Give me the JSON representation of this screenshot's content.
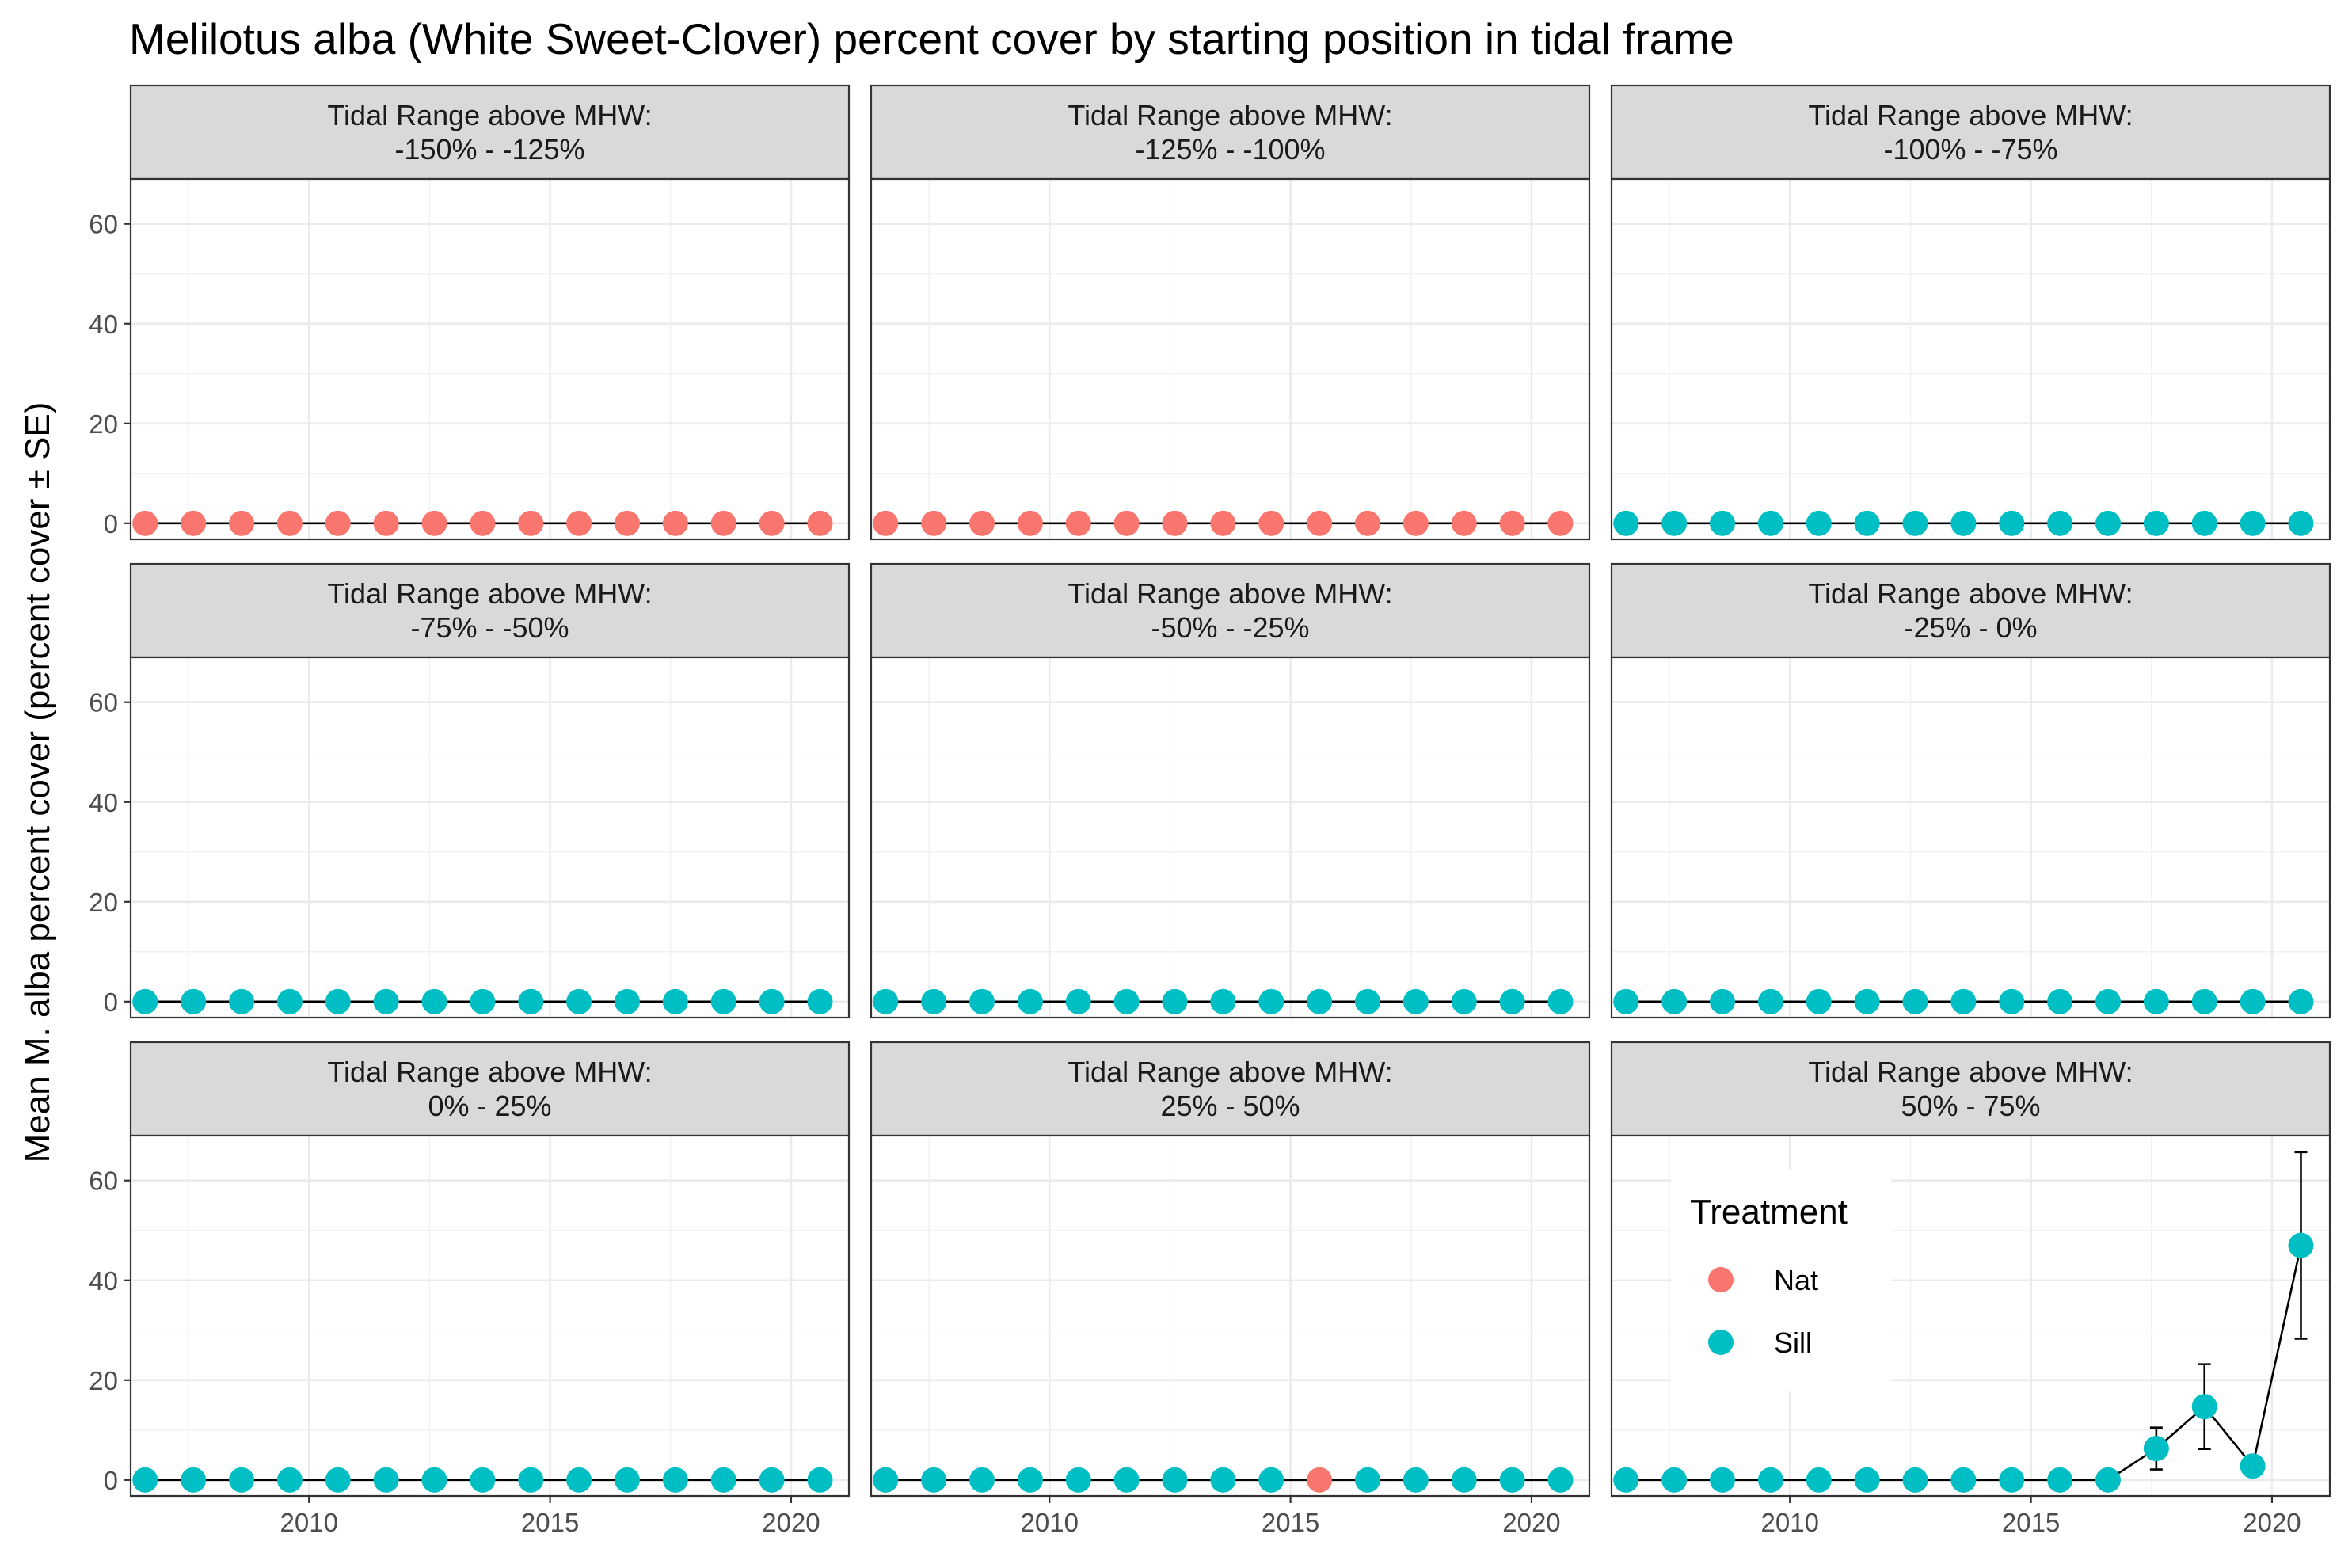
{
  "chart_data": {
    "type": "line",
    "title": "Melilotus alba (White Sweet-Clover) percent cover by starting position in tidal frame",
    "ylabel": "Mean M. alba percent cover (percent cover ± SE)",
    "xlabel": "",
    "xlim": [
      2006.3,
      2021.2
    ],
    "ylim": [
      -3.2,
      69
    ],
    "x_ticks": [
      2010,
      2015,
      2020
    ],
    "y_ticks": [
      0,
      20,
      40,
      60
    ],
    "grid": true,
    "legend": {
      "title": "Treatment",
      "position": "inside bottom-right panel, top-left",
      "entries": [
        {
          "name": "Nat",
          "color": "#F8766D"
        },
        {
          "name": "Sill",
          "color": "#00BFC4"
        }
      ]
    },
    "strip_header": "Tidal Range above MHW:",
    "panels": [
      {
        "range": "-150%  -  -125%",
        "points": [
          {
            "x": 2006.6,
            "y": 0,
            "t": "Nat"
          },
          {
            "x": 2007.6,
            "y": 0,
            "t": "Nat"
          },
          {
            "x": 2008.6,
            "y": 0,
            "t": "Nat"
          },
          {
            "x": 2009.6,
            "y": 0,
            "t": "Nat"
          },
          {
            "x": 2010.6,
            "y": 0,
            "t": "Nat"
          },
          {
            "x": 2011.6,
            "y": 0,
            "t": "Nat"
          },
          {
            "x": 2012.6,
            "y": 0,
            "t": "Nat"
          },
          {
            "x": 2013.6,
            "y": 0,
            "t": "Nat"
          },
          {
            "x": 2014.6,
            "y": 0,
            "t": "Nat"
          },
          {
            "x": 2015.6,
            "y": 0,
            "t": "Nat"
          },
          {
            "x": 2016.6,
            "y": 0,
            "t": "Nat"
          },
          {
            "x": 2017.6,
            "y": 0,
            "t": "Nat"
          },
          {
            "x": 2018.6,
            "y": 0,
            "t": "Nat"
          },
          {
            "x": 2019.6,
            "y": 0,
            "t": "Nat"
          },
          {
            "x": 2020.6,
            "y": 0,
            "t": "Nat"
          }
        ]
      },
      {
        "range": "-125%  -  -100%",
        "points": [
          {
            "x": 2006.6,
            "y": 0,
            "t": "Nat"
          },
          {
            "x": 2007.6,
            "y": 0,
            "t": "Nat"
          },
          {
            "x": 2008.6,
            "y": 0,
            "t": "Nat"
          },
          {
            "x": 2009.6,
            "y": 0,
            "t": "Nat"
          },
          {
            "x": 2010.6,
            "y": 0,
            "t": "Nat"
          },
          {
            "x": 2011.6,
            "y": 0,
            "t": "Nat"
          },
          {
            "x": 2012.6,
            "y": 0,
            "t": "Nat"
          },
          {
            "x": 2013.6,
            "y": 0,
            "t": "Nat"
          },
          {
            "x": 2014.6,
            "y": 0,
            "t": "Nat"
          },
          {
            "x": 2015.6,
            "y": 0,
            "t": "Nat"
          },
          {
            "x": 2016.6,
            "y": 0,
            "t": "Nat"
          },
          {
            "x": 2017.6,
            "y": 0,
            "t": "Nat"
          },
          {
            "x": 2018.6,
            "y": 0,
            "t": "Nat"
          },
          {
            "x": 2019.6,
            "y": 0,
            "t": "Nat"
          },
          {
            "x": 2020.6,
            "y": 0,
            "t": "Nat"
          }
        ]
      },
      {
        "range": "-100%  -  -75%",
        "points": [
          {
            "x": 2006.6,
            "y": 0,
            "t": "Sill"
          },
          {
            "x": 2007.6,
            "y": 0,
            "t": "Sill"
          },
          {
            "x": 2008.6,
            "y": 0,
            "t": "Sill"
          },
          {
            "x": 2009.6,
            "y": 0,
            "t": "Sill"
          },
          {
            "x": 2010.6,
            "y": 0,
            "t": "Sill"
          },
          {
            "x": 2011.6,
            "y": 0,
            "t": "Sill"
          },
          {
            "x": 2012.6,
            "y": 0,
            "t": "Sill"
          },
          {
            "x": 2013.6,
            "y": 0,
            "t": "Sill"
          },
          {
            "x": 2014.6,
            "y": 0,
            "t": "Sill"
          },
          {
            "x": 2015.6,
            "y": 0,
            "t": "Sill"
          },
          {
            "x": 2016.6,
            "y": 0,
            "t": "Sill"
          },
          {
            "x": 2017.6,
            "y": 0,
            "t": "Sill"
          },
          {
            "x": 2018.6,
            "y": 0,
            "t": "Sill"
          },
          {
            "x": 2019.6,
            "y": 0,
            "t": "Sill"
          },
          {
            "x": 2020.6,
            "y": 0,
            "t": "Sill"
          }
        ]
      },
      {
        "range": "-75%  -  -50%",
        "points": [
          {
            "x": 2006.6,
            "y": 0,
            "t": "Sill"
          },
          {
            "x": 2007.6,
            "y": 0,
            "t": "Sill"
          },
          {
            "x": 2008.6,
            "y": 0,
            "t": "Sill"
          },
          {
            "x": 2009.6,
            "y": 0,
            "t": "Sill"
          },
          {
            "x": 2010.6,
            "y": 0,
            "t": "Sill"
          },
          {
            "x": 2011.6,
            "y": 0,
            "t": "Sill"
          },
          {
            "x": 2012.6,
            "y": 0,
            "t": "Sill"
          },
          {
            "x": 2013.6,
            "y": 0,
            "t": "Sill"
          },
          {
            "x": 2014.6,
            "y": 0,
            "t": "Sill"
          },
          {
            "x": 2015.6,
            "y": 0,
            "t": "Sill"
          },
          {
            "x": 2016.6,
            "y": 0,
            "t": "Sill"
          },
          {
            "x": 2017.6,
            "y": 0,
            "t": "Sill"
          },
          {
            "x": 2018.6,
            "y": 0,
            "t": "Sill"
          },
          {
            "x": 2019.6,
            "y": 0,
            "t": "Sill"
          },
          {
            "x": 2020.6,
            "y": 0,
            "t": "Sill"
          }
        ]
      },
      {
        "range": "-50%  -  -25%",
        "points": [
          {
            "x": 2006.6,
            "y": 0,
            "t": "Sill"
          },
          {
            "x": 2007.6,
            "y": 0,
            "t": "Sill"
          },
          {
            "x": 2008.6,
            "y": 0,
            "t": "Sill"
          },
          {
            "x": 2009.6,
            "y": 0,
            "t": "Sill"
          },
          {
            "x": 2010.6,
            "y": 0,
            "t": "Sill"
          },
          {
            "x": 2011.6,
            "y": 0,
            "t": "Sill"
          },
          {
            "x": 2012.6,
            "y": 0,
            "t": "Sill"
          },
          {
            "x": 2013.6,
            "y": 0,
            "t": "Sill"
          },
          {
            "x": 2014.6,
            "y": 0,
            "t": "Sill"
          },
          {
            "x": 2015.6,
            "y": 0,
            "t": "Sill"
          },
          {
            "x": 2016.6,
            "y": 0,
            "t": "Sill"
          },
          {
            "x": 2017.6,
            "y": 0,
            "t": "Sill"
          },
          {
            "x": 2018.6,
            "y": 0,
            "t": "Sill"
          },
          {
            "x": 2019.6,
            "y": 0,
            "t": "Sill"
          },
          {
            "x": 2020.6,
            "y": 0,
            "t": "Sill"
          }
        ]
      },
      {
        "range": "-25%  -  0%",
        "points": [
          {
            "x": 2006.6,
            "y": 0,
            "t": "Sill"
          },
          {
            "x": 2007.6,
            "y": 0,
            "t": "Sill"
          },
          {
            "x": 2008.6,
            "y": 0,
            "t": "Sill"
          },
          {
            "x": 2009.6,
            "y": 0,
            "t": "Sill"
          },
          {
            "x": 2010.6,
            "y": 0,
            "t": "Sill"
          },
          {
            "x": 2011.6,
            "y": 0,
            "t": "Sill"
          },
          {
            "x": 2012.6,
            "y": 0,
            "t": "Sill"
          },
          {
            "x": 2013.6,
            "y": 0,
            "t": "Sill"
          },
          {
            "x": 2014.6,
            "y": 0,
            "t": "Sill"
          },
          {
            "x": 2015.6,
            "y": 0,
            "t": "Sill"
          },
          {
            "x": 2016.6,
            "y": 0,
            "t": "Sill"
          },
          {
            "x": 2017.6,
            "y": 0,
            "t": "Sill"
          },
          {
            "x": 2018.6,
            "y": 0,
            "t": "Sill"
          },
          {
            "x": 2019.6,
            "y": 0,
            "t": "Sill"
          },
          {
            "x": 2020.6,
            "y": 0,
            "t": "Sill"
          }
        ]
      },
      {
        "range": "0%  -  25%",
        "points": [
          {
            "x": 2006.6,
            "y": 0,
            "t": "Sill"
          },
          {
            "x": 2007.6,
            "y": 0,
            "t": "Sill"
          },
          {
            "x": 2008.6,
            "y": 0,
            "t": "Sill"
          },
          {
            "x": 2009.6,
            "y": 0,
            "t": "Sill"
          },
          {
            "x": 2010.6,
            "y": 0,
            "t": "Sill"
          },
          {
            "x": 2011.6,
            "y": 0,
            "t": "Sill"
          },
          {
            "x": 2012.6,
            "y": 0,
            "t": "Sill"
          },
          {
            "x": 2013.6,
            "y": 0,
            "t": "Sill"
          },
          {
            "x": 2014.6,
            "y": 0,
            "t": "Sill"
          },
          {
            "x": 2015.6,
            "y": 0,
            "t": "Sill"
          },
          {
            "x": 2016.6,
            "y": 0,
            "t": "Sill"
          },
          {
            "x": 2017.6,
            "y": 0,
            "t": "Sill"
          },
          {
            "x": 2018.6,
            "y": 0,
            "t": "Sill"
          },
          {
            "x": 2019.6,
            "y": 0,
            "t": "Sill"
          },
          {
            "x": 2020.6,
            "y": 0,
            "t": "Sill"
          }
        ]
      },
      {
        "range": "25%  -  50%",
        "points": [
          {
            "x": 2006.6,
            "y": 0,
            "t": "Nat"
          },
          {
            "x": 2006.6,
            "y": 0,
            "t": "Sill"
          },
          {
            "x": 2007.6,
            "y": 0,
            "t": "Sill"
          },
          {
            "x": 2008.6,
            "y": 0,
            "t": "Sill"
          },
          {
            "x": 2009.6,
            "y": 0,
            "t": "Sill"
          },
          {
            "x": 2010.6,
            "y": 0,
            "t": "Sill"
          },
          {
            "x": 2011.6,
            "y": 0,
            "t": "Sill"
          },
          {
            "x": 2012.6,
            "y": 0,
            "t": "Sill"
          },
          {
            "x": 2013.6,
            "y": 0,
            "t": "Sill"
          },
          {
            "x": 2014.6,
            "y": 0,
            "t": "Sill"
          },
          {
            "x": 2015.6,
            "y": 0,
            "t": "Nat"
          },
          {
            "x": 2016.6,
            "y": 0,
            "t": "Sill"
          },
          {
            "x": 2017.6,
            "y": 0,
            "t": "Sill"
          },
          {
            "x": 2018.6,
            "y": 0,
            "t": "Sill"
          },
          {
            "x": 2019.6,
            "y": 0,
            "t": "Sill"
          },
          {
            "x": 2020.6,
            "y": 0,
            "t": "Sill"
          }
        ]
      },
      {
        "range": "50%  -  75%",
        "points": [
          {
            "x": 2006.6,
            "y": 0,
            "t": "Sill"
          },
          {
            "x": 2007.6,
            "y": 0,
            "t": "Sill"
          },
          {
            "x": 2008.6,
            "y": 0,
            "t": "Sill"
          },
          {
            "x": 2009.6,
            "y": 0,
            "t": "Sill"
          },
          {
            "x": 2010.6,
            "y": 0,
            "t": "Sill"
          },
          {
            "x": 2011.6,
            "y": 0,
            "t": "Sill"
          },
          {
            "x": 2012.6,
            "y": 0,
            "t": "Sill"
          },
          {
            "x": 2013.6,
            "y": 0,
            "t": "Sill"
          },
          {
            "x": 2014.6,
            "y": 0,
            "t": "Sill"
          },
          {
            "x": 2015.6,
            "y": 0,
            "t": "Sill"
          },
          {
            "x": 2016.6,
            "y": 0,
            "t": "Sill"
          },
          {
            "x": 2017.6,
            "y": 6.3,
            "t": "Sill",
            "se": 4.2
          },
          {
            "x": 2018.6,
            "y": 14.7,
            "t": "Sill",
            "se": 8.5
          },
          {
            "x": 2019.6,
            "y": 2.8,
            "t": "Sill"
          },
          {
            "x": 2020.6,
            "y": 47,
            "t": "Sill",
            "se": 18.7
          }
        ]
      }
    ]
  }
}
